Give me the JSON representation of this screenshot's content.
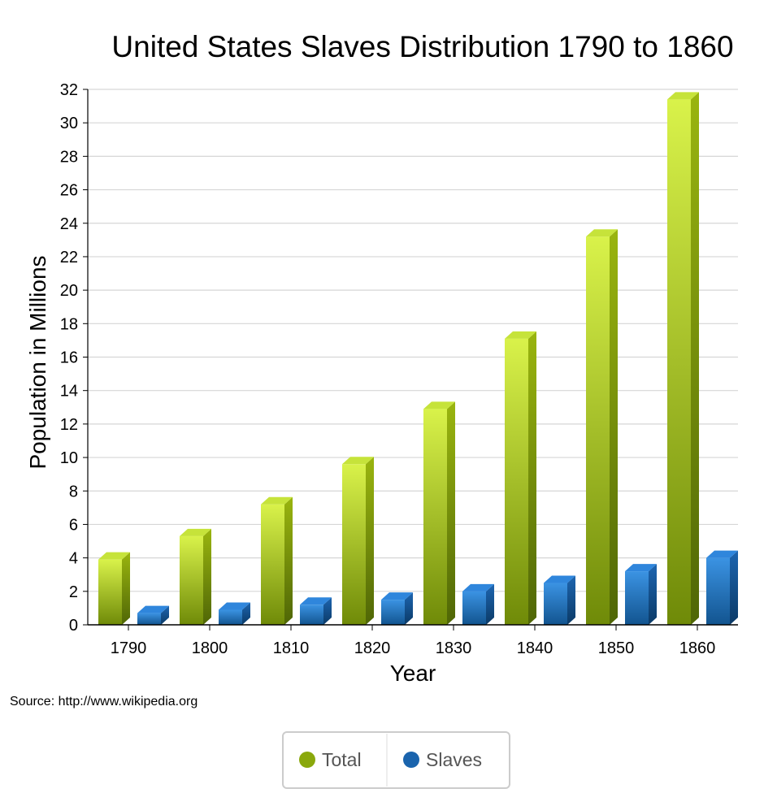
{
  "colors": {
    "total_front_top": "#d9f24a",
    "total_front_bottom": "#6f8a08",
    "total_top": "#c6e33a",
    "total_side_top": "#9ab50f",
    "total_side_bottom": "#4f6606",
    "slaves_front_top": "#3b93e3",
    "slaves_front_bottom": "#12548f",
    "slaves_top": "#2f86dc",
    "slaves_side_top": "#1d65b0",
    "slaves_side_bottom": "#0b3a66",
    "legend_total": "#8aa80c",
    "legend_slaves": "#1a64ad",
    "grid": "#d6d6d6"
  },
  "source_note": "Source: http://www.wikipedia.org",
  "legend": {
    "total_label": "Total",
    "slaves_label": "Slaves"
  },
  "chart_data": {
    "type": "bar",
    "title": "United States Slaves Distribution 1790 to 1860",
    "xlabel": "Year",
    "ylabel": "Population in Millions",
    "categories": [
      "1790",
      "1800",
      "1810",
      "1820",
      "1830",
      "1840",
      "1850",
      "1860"
    ],
    "series": [
      {
        "name": "Total",
        "values": [
          3.9,
          5.3,
          7.2,
          9.6,
          12.9,
          17.1,
          23.2,
          31.4
        ]
      },
      {
        "name": "Slaves",
        "values": [
          0.7,
          0.9,
          1.2,
          1.5,
          2.0,
          2.5,
          3.2,
          4.0
        ]
      }
    ],
    "ylim": [
      0,
      32
    ],
    "yticks": [
      "0",
      "2",
      "4",
      "6",
      "8",
      "10",
      "12",
      "14",
      "16",
      "18",
      "20",
      "22",
      "24",
      "26",
      "28",
      "30",
      "32"
    ],
    "grid": true,
    "legend_position": "bottom"
  }
}
